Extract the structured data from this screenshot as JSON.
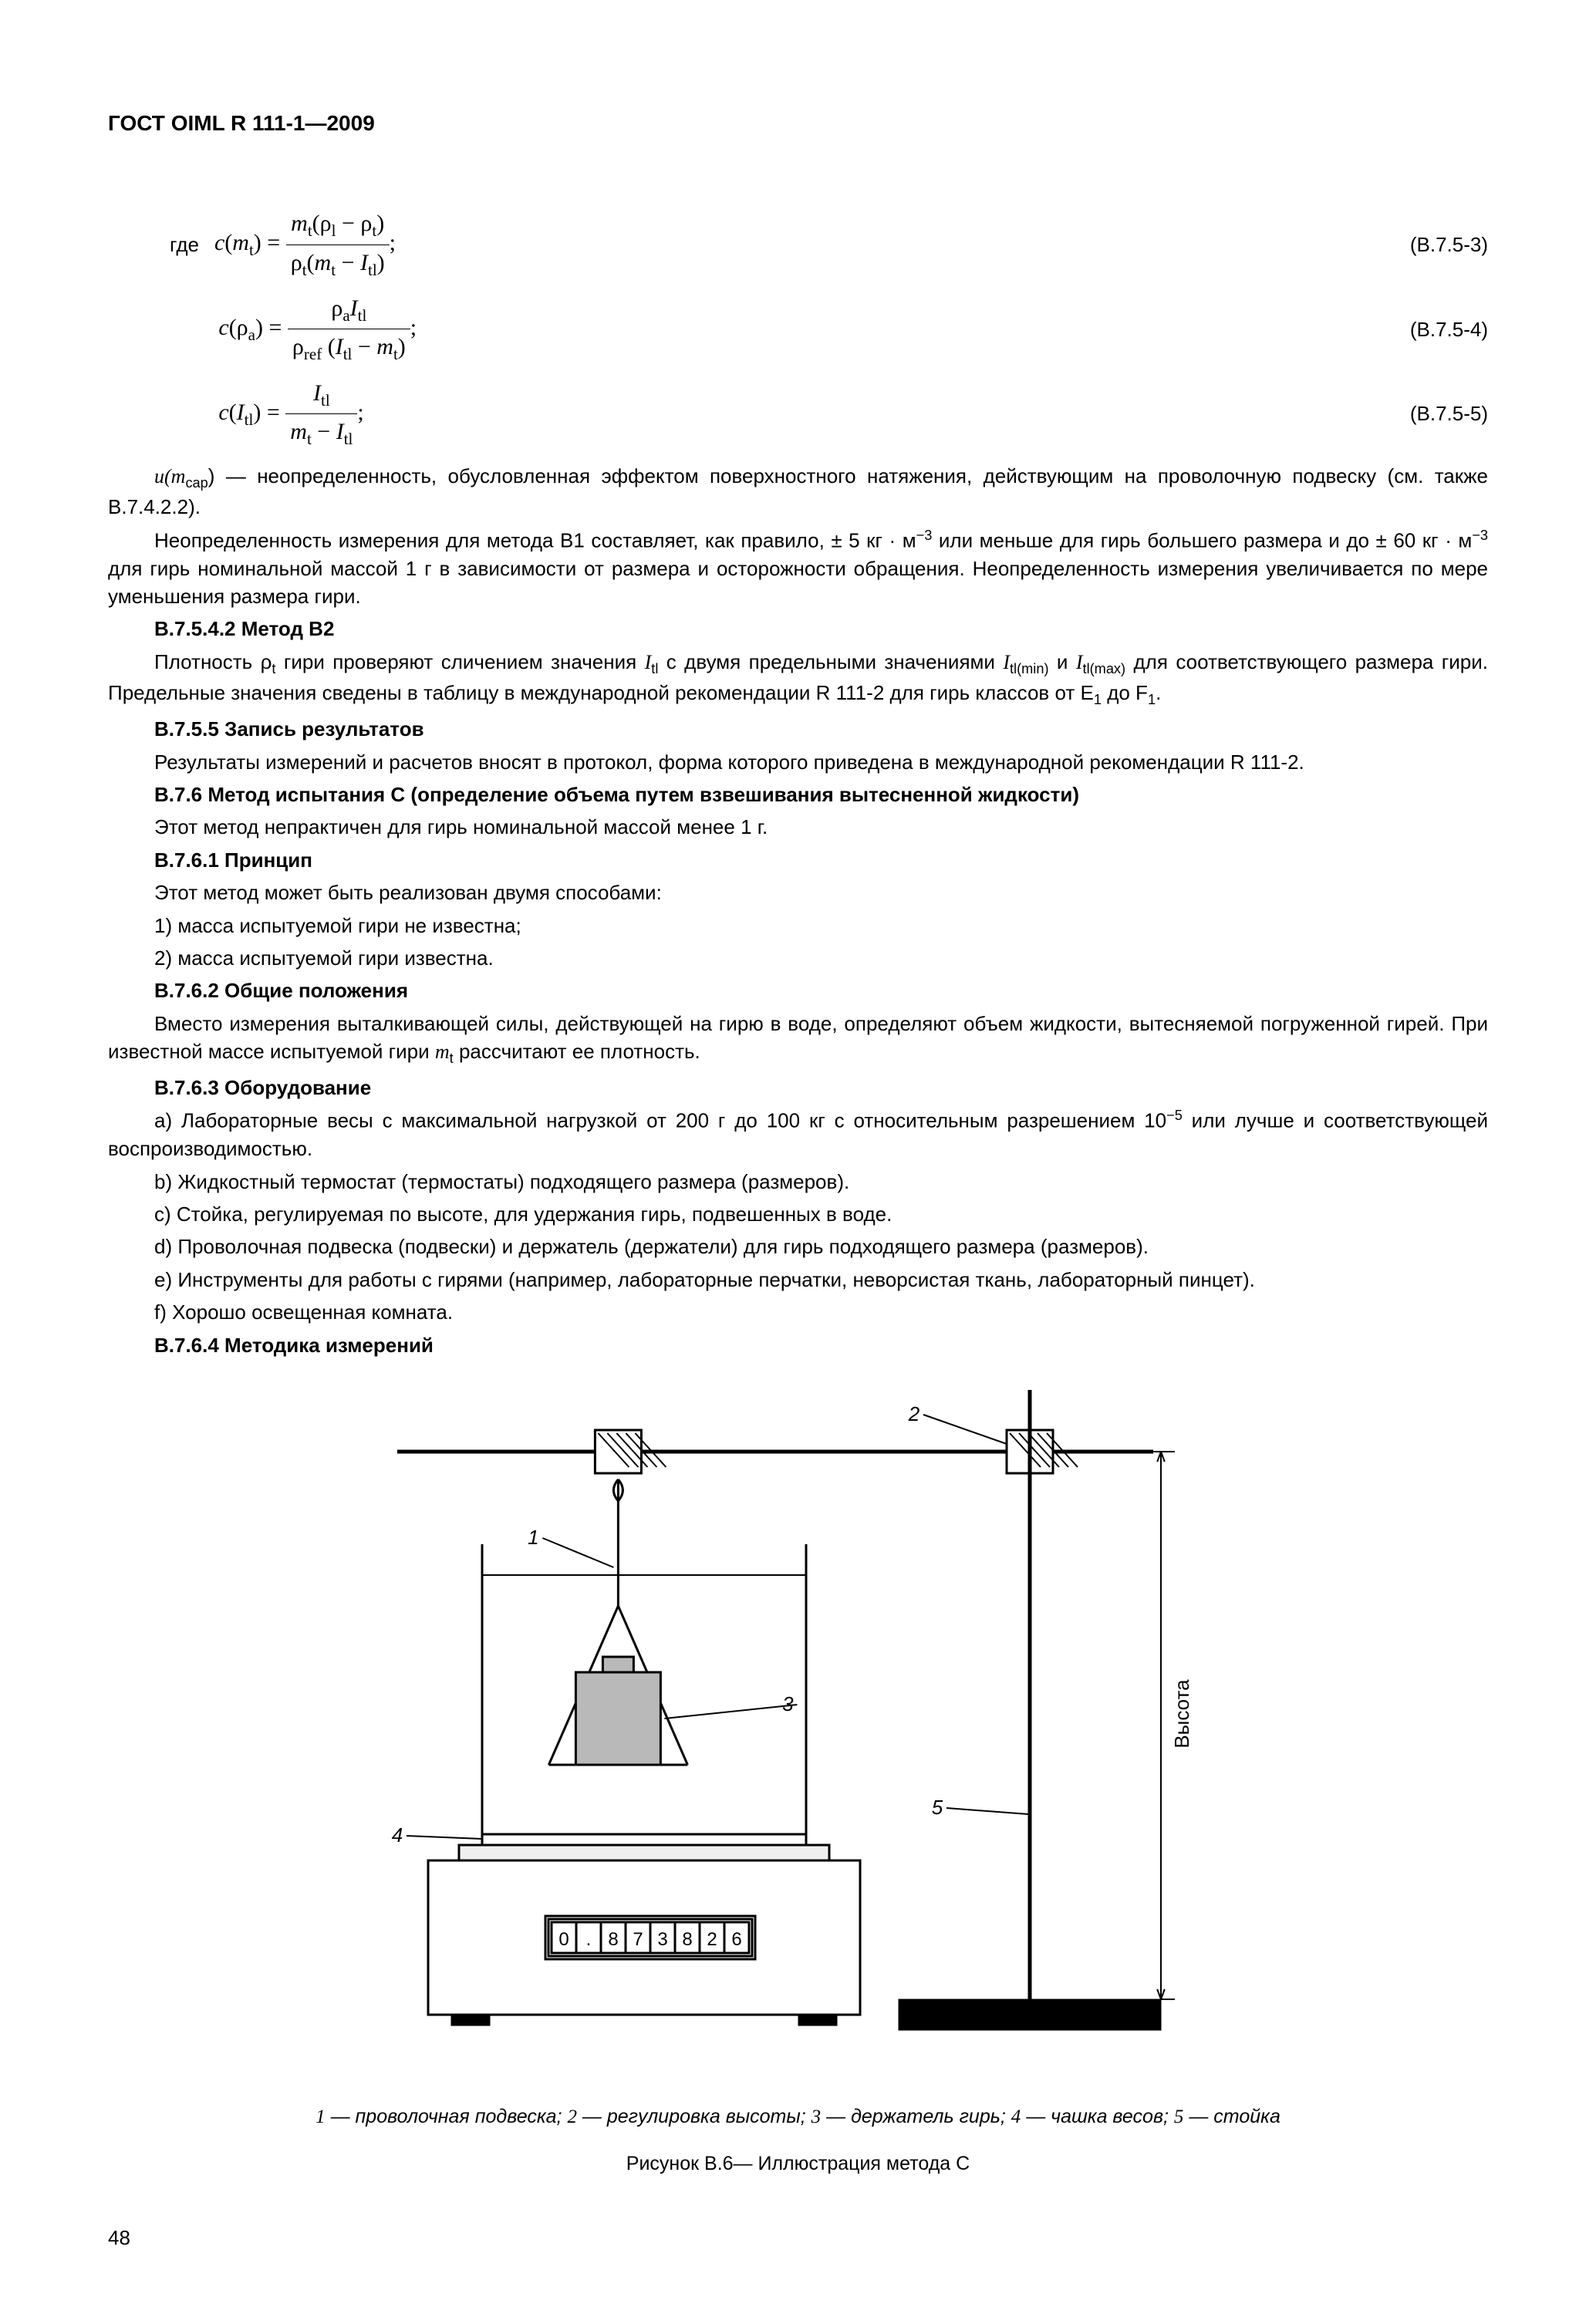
{
  "header": "ГОСТ OIML R 111-1—2009",
  "eq_prefix": "где",
  "eq1_num": "(В.7.5-3)",
  "eq2_num": "(В.7.5-4)",
  "eq3_num": "(В.7.5-5)",
  "p_umcap1": "u(m",
  "p_umcap_sub": "cap",
  "p_umcap2": ") — неопределенность, обусловленная эффектом поверхностного натяжения, действующим на проволочную подвеску (см. также В.7.4.2.2).",
  "p_neopr_a": "Неопределенность измерения для метода В1 составляет, как правило, ± 5 кг · м",
  "p_neopr_b": " или меньше для гирь большего размера и до ± 60 кг · м",
  "p_neopr_c": " для гирь номинальной массой 1 г в зависимости от размера и осторожности обращения. Неопределенность измерения увеличивается по мере уменьшения размера гири.",
  "h_b7542": "В.7.5.4.2 Метод В2",
  "p_plot_a": "Плотность ρ",
  "p_plot_a_sub": "t",
  "p_plot_b": "  гири проверяют сличением значения ",
  "p_plot_c": "  с двумя предельными значениями ",
  "p_plot_d": " и ",
  "p_plot_e": " для соответствующего размера гири. Предельные значения сведены в таблицу в международной рекомендации R 111-2 для гирь классов от E",
  "p_plot_e_sub1": "1",
  "p_plot_f": "  до F",
  "p_plot_f_sub": "1",
  "p_plot_g": ".",
  "h_b755": "В.7.5.5 Запись результатов",
  "p_b755": "Результаты измерений и расчетов вносят в протокол, форма которого приведена в международной рекомендации R 111-2.",
  "h_b76": "В.7.6 Метод испытания С (определение объема путем взвешивания вытесненной жидкости)",
  "p_b76": "Этот метод непрактичен для гирь номинальной массой менее 1 г.",
  "h_b761": "В.7.6.1 Принцип",
  "p_b761": "Этот метод может быть реализован двумя способами:",
  "p_b761_1": "1) масса испытуемой гири не известна;",
  "p_b761_2": "2) масса испытуемой гири известна.",
  "h_b762": "В.7.6.2 Общие положения",
  "p_b762_a": "Вместо измерения выталкивающей силы, действующей на гирю в воде, определяют объем жидкости, вытесняемой погруженной гирей. При известной массе испытуемой гири ",
  "p_b762_mt": "m",
  "p_b762_mt_sub": "t",
  "p_b762_b": "  рассчитают ее плотность.",
  "h_b763": "В.7.6.3 Оборудование",
  "p_b763_a1": "a) Лабораторные весы с максимальной нагрузкой от 200 г до 100 кг с относительным разрешением 10",
  "p_b763_a2": " или лучше и соответствующей воспроизводимостью.",
  "p_b763_b": "b) Жидкостный термостат (термостаты) подходящего размера (размеров).",
  "p_b763_c": "c) Стойка, регулируемая по высоте, для удержания гирь, подвешенных в воде.",
  "p_b763_d": "d) Проволочная подвеска (подвески) и держатель (держатели) для гирь подходящего размера (размеров).",
  "p_b763_e": "e) Инструменты для работы с гирями (например, лабораторные перчатки, неворсистая ткань, лабораторный пинцет).",
  "p_b763_f": "f) Хорошо освещенная комната.",
  "h_b764": "В.7.6.4 Методика измерений",
  "figure": {
    "display_digits": [
      "0",
      ".",
      "8",
      "7",
      "3",
      "8",
      "2",
      "6"
    ],
    "labels": {
      "1": "1",
      "2": "2",
      "3": "3",
      "4": "4",
      "5": "5"
    },
    "height_label": "Высота",
    "legend_1": "1",
    "legend_1t": " — проволочная подвеска; ",
    "legend_2": "2",
    "legend_2t": " — регулировка высоты; ",
    "legend_3": "3",
    "legend_3t": " — держатель гирь; ",
    "legend_4": "4",
    "legend_4t": " — чашка весов; ",
    "legend_5": "5",
    "legend_5t": " — стойка",
    "caption": "Рисунок В.6— Иллюстрация метода С",
    "colors": {
      "stroke": "#000000",
      "fill_weight": "#b9b9b9",
      "fill_base": "#000000",
      "bg": "#ffffff"
    },
    "stroke_width": 3
  },
  "page_number": "48"
}
